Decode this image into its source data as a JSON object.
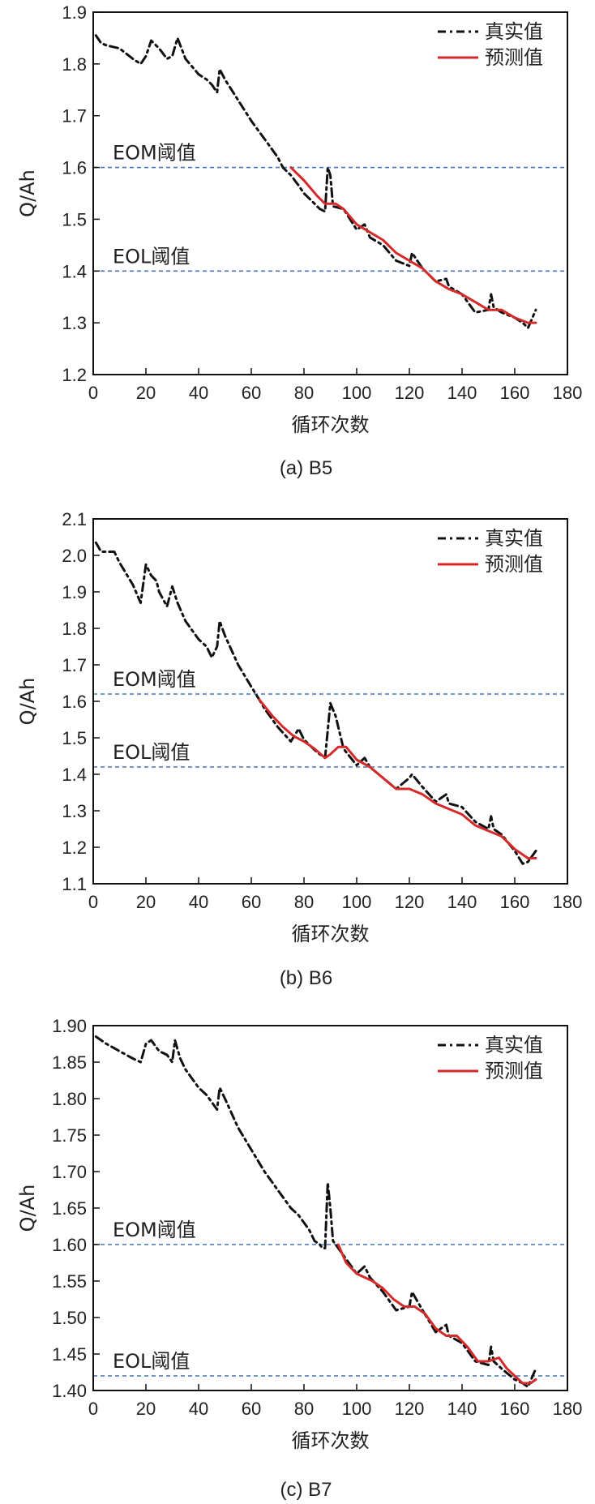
{
  "chart_data": [
    {
      "type": "line",
      "caption": "(a) B5",
      "xlabel": "循环次数",
      "ylabel": "Q/Ah",
      "xlim": [
        0,
        180
      ],
      "ylim": [
        1.2,
        1.9
      ],
      "xticks": [
        "0",
        "20",
        "40",
        "60",
        "80",
        "100",
        "120",
        "140",
        "160",
        "180"
      ],
      "yticks": [
        "1.2",
        "1.3",
        "1.4",
        "1.5",
        "1.6",
        "1.7",
        "1.8",
        "1.9"
      ],
      "legend_position": "top-right",
      "colors": {
        "actual": "#111111",
        "predicted": "#d42a2a",
        "threshold": "#4a74b5"
      },
      "thresholds": [
        {
          "label": "EOM阈值",
          "y": 1.6
        },
        {
          "label": "EOL阈值",
          "y": 1.4
        }
      ],
      "series": [
        {
          "name": "真实值",
          "style": "dashdot",
          "x": [
            1,
            3,
            5,
            10,
            15,
            18,
            20,
            22,
            25,
            28,
            30,
            32,
            35,
            40,
            43,
            45,
            47,
            48,
            50,
            55,
            60,
            65,
            70,
            72,
            75,
            78,
            80,
            83,
            86,
            88,
            89,
            90,
            91,
            95,
            100,
            103,
            105,
            110,
            115,
            120,
            121,
            125,
            130,
            134,
            135,
            140,
            145,
            150,
            151,
            152,
            155,
            160,
            163,
            165,
            168
          ],
          "y": [
            1.855,
            1.84,
            1.836,
            1.83,
            1.81,
            1.8,
            1.815,
            1.845,
            1.83,
            1.81,
            1.815,
            1.85,
            1.81,
            1.78,
            1.77,
            1.76,
            1.745,
            1.79,
            1.77,
            1.73,
            1.69,
            1.655,
            1.62,
            1.6,
            1.585,
            1.565,
            1.55,
            1.535,
            1.52,
            1.515,
            1.6,
            1.585,
            1.525,
            1.52,
            1.48,
            1.49,
            1.465,
            1.45,
            1.42,
            1.41,
            1.435,
            1.405,
            1.38,
            1.385,
            1.37,
            1.355,
            1.32,
            1.325,
            1.355,
            1.33,
            1.32,
            1.31,
            1.3,
            1.29,
            1.325
          ]
        },
        {
          "name": "预测值",
          "style": "solid",
          "x": [
            75,
            80,
            85,
            88,
            90,
            92,
            95,
            100,
            105,
            110,
            115,
            120,
            125,
            130,
            135,
            140,
            145,
            150,
            155,
            160,
            165,
            168
          ],
          "y": [
            1.6,
            1.575,
            1.545,
            1.53,
            1.53,
            1.53,
            1.52,
            1.49,
            1.475,
            1.46,
            1.435,
            1.42,
            1.405,
            1.38,
            1.365,
            1.355,
            1.34,
            1.325,
            1.325,
            1.31,
            1.3,
            1.3
          ]
        }
      ]
    },
    {
      "type": "line",
      "caption": "(b) B6",
      "xlabel": "循环次数",
      "ylabel": "Q/Ah",
      "xlim": [
        0,
        180
      ],
      "ylim": [
        1.1,
        2.1
      ],
      "xticks": [
        "0",
        "20",
        "40",
        "60",
        "80",
        "100",
        "120",
        "140",
        "160",
        "180"
      ],
      "yticks": [
        "1.1",
        "1.2",
        "1.3",
        "1.4",
        "1.5",
        "1.6",
        "1.7",
        "1.8",
        "1.9",
        "2.0",
        "2.1"
      ],
      "legend_position": "top-right",
      "colors": {
        "actual": "#111111",
        "predicted": "#d42a2a",
        "threshold": "#4a74b5"
      },
      "thresholds": [
        {
          "label": "EOM阈值",
          "y": 1.62
        },
        {
          "label": "EOL阈值",
          "y": 1.42
        }
      ],
      "series": [
        {
          "name": "真实值",
          "style": "dashdot",
          "x": [
            1,
            3,
            5,
            8,
            10,
            15,
            18,
            20,
            22,
            24,
            25,
            28,
            30,
            32,
            35,
            40,
            43,
            45,
            47,
            48,
            50,
            55,
            60,
            63,
            65,
            70,
            75,
            78,
            80,
            85,
            88,
            89,
            90,
            92,
            95,
            100,
            103,
            105,
            110,
            115,
            120,
            121,
            125,
            130,
            134,
            135,
            140,
            145,
            150,
            151,
            152,
            155,
            160,
            163,
            165,
            168
          ],
          "y": [
            2.035,
            2.01,
            2.01,
            2.01,
            1.98,
            1.92,
            1.87,
            1.975,
            1.945,
            1.93,
            1.9,
            1.86,
            1.915,
            1.87,
            1.82,
            1.77,
            1.75,
            1.72,
            1.75,
            1.82,
            1.78,
            1.7,
            1.64,
            1.605,
            1.58,
            1.53,
            1.49,
            1.525,
            1.495,
            1.46,
            1.445,
            1.52,
            1.595,
            1.56,
            1.47,
            1.425,
            1.445,
            1.42,
            1.39,
            1.36,
            1.39,
            1.4,
            1.365,
            1.325,
            1.345,
            1.32,
            1.31,
            1.27,
            1.25,
            1.285,
            1.25,
            1.235,
            1.19,
            1.155,
            1.16,
            1.19
          ]
        },
        {
          "name": "预测值",
          "style": "solid",
          "x": [
            63,
            68,
            72,
            76,
            80,
            84,
            88,
            90,
            93,
            96,
            100,
            105,
            110,
            115,
            120,
            125,
            130,
            135,
            140,
            145,
            150,
            155,
            160,
            165,
            168
          ],
          "y": [
            1.605,
            1.56,
            1.53,
            1.505,
            1.49,
            1.47,
            1.445,
            1.455,
            1.475,
            1.475,
            1.44,
            1.42,
            1.39,
            1.36,
            1.36,
            1.345,
            1.32,
            1.305,
            1.29,
            1.26,
            1.245,
            1.23,
            1.195,
            1.17,
            1.17
          ]
        }
      ]
    },
    {
      "type": "line",
      "caption": "(c) B7",
      "xlabel": "循环次数",
      "ylabel": "Q/Ah",
      "xlim": [
        0,
        180
      ],
      "ylim": [
        1.4,
        1.9
      ],
      "xticks": [
        "0",
        "20",
        "40",
        "60",
        "80",
        "100",
        "120",
        "140",
        "160",
        "180"
      ],
      "yticks": [
        "1.40",
        "1.45",
        "1.50",
        "1.55",
        "1.60",
        "1.65",
        "1.70",
        "1.75",
        "1.80",
        "1.85",
        "1.90"
      ],
      "legend_position": "top-right",
      "colors": {
        "actual": "#111111",
        "predicted": "#d42a2a",
        "threshold": "#4a74b5"
      },
      "thresholds": [
        {
          "label": "EOM阈值",
          "y": 1.6
        },
        {
          "label": "EOL阈值",
          "y": 1.42
        }
      ],
      "series": [
        {
          "name": "真实值",
          "style": "dashdot",
          "x": [
            1,
            3,
            5,
            10,
            15,
            18,
            20,
            22,
            25,
            28,
            30,
            31,
            33,
            35,
            40,
            43,
            45,
            47,
            48,
            50,
            55,
            60,
            65,
            70,
            75,
            78,
            80,
            82,
            84,
            86,
            87,
            88,
            89,
            90,
            91,
            95,
            100,
            103,
            105,
            110,
            115,
            120,
            121,
            125,
            130,
            134,
            135,
            140,
            145,
            150,
            151,
            152,
            155,
            160,
            163,
            165,
            168
          ],
          "y": [
            1.885,
            1.88,
            1.875,
            1.865,
            1.855,
            1.85,
            1.875,
            1.88,
            1.865,
            1.86,
            1.85,
            1.88,
            1.855,
            1.84,
            1.815,
            1.805,
            1.795,
            1.785,
            1.815,
            1.8,
            1.76,
            1.73,
            1.7,
            1.675,
            1.65,
            1.64,
            1.63,
            1.62,
            1.605,
            1.6,
            1.595,
            1.595,
            1.685,
            1.65,
            1.605,
            1.585,
            1.56,
            1.57,
            1.555,
            1.535,
            1.51,
            1.515,
            1.535,
            1.51,
            1.48,
            1.49,
            1.475,
            1.465,
            1.44,
            1.435,
            1.46,
            1.44,
            1.43,
            1.415,
            1.41,
            1.405,
            1.43
          ]
        },
        {
          "name": "预测值",
          "style": "solid",
          "x": [
            93,
            96,
            100,
            103,
            106,
            110,
            114,
            118,
            122,
            126,
            130,
            134,
            138,
            142,
            146,
            150,
            154,
            157,
            160,
            163,
            166,
            168
          ],
          "y": [
            1.6,
            1.575,
            1.56,
            1.555,
            1.55,
            1.54,
            1.525,
            1.515,
            1.515,
            1.505,
            1.485,
            1.475,
            1.475,
            1.46,
            1.44,
            1.44,
            1.445,
            1.43,
            1.42,
            1.41,
            1.41,
            1.415
          ]
        }
      ]
    }
  ]
}
